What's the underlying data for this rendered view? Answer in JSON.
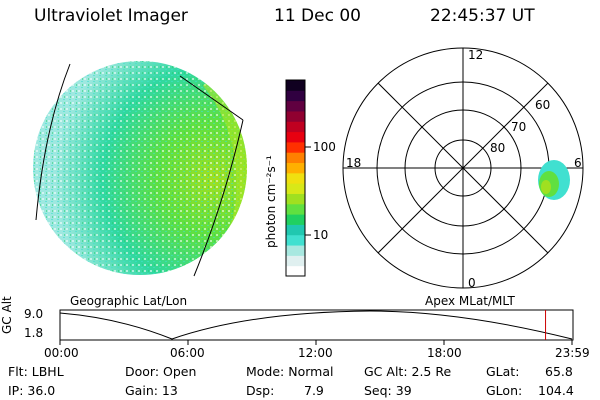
{
  "header": {
    "instrument": "Ultraviolet Imager",
    "date": "11 Dec 00",
    "time": "22:45:37 UT"
  },
  "colorbar": {
    "label": "photon cm⁻²s⁻¹",
    "ticks": [
      "100",
      "10"
    ],
    "scale": "log",
    "colors": [
      "#ffffff",
      "#e0f0f0",
      "#a8e8e0",
      "#40e0d0",
      "#20c8b0",
      "#20d060",
      "#60e040",
      "#a0e020",
      "#d8e818",
      "#f0e010",
      "#ffb000",
      "#ff8000",
      "#ff3000",
      "#e80010",
      "#c00020",
      "#900030",
      "#600040",
      "#300040",
      "#100020"
    ]
  },
  "labels": {
    "left_projection": "Geographic Lat/Lon",
    "right_projection": "Apex MLat/MLT"
  },
  "polar_plot": {
    "mlt_labels": [
      "12",
      "18",
      "6",
      "0"
    ],
    "lat_labels": [
      "60",
      "70",
      "80"
    ]
  },
  "altitude_plot": {
    "ylabel": "GC Alt",
    "yticks": [
      "9.0",
      "1.8"
    ],
    "xticks": [
      "00:00",
      "06:00",
      "12:00",
      "18:00",
      "23:59"
    ],
    "current_time_hours": 22.76,
    "marker_color": "#cc0000"
  },
  "status": {
    "flt": "Flt: LBHL",
    "ip": "IP: 36.0",
    "door": "Door: Open",
    "gain": "Gain: 13",
    "mode": "Mode: Normal",
    "dsp_label": "Dsp:",
    "dsp_value": "7.9",
    "gc_alt": "GC Alt: 2.5 Re",
    "seq": "Seq: 39",
    "glat_label": "GLat:",
    "glat_value": "65.8",
    "glon_label": "GLon:",
    "glon_value": "104.4"
  }
}
